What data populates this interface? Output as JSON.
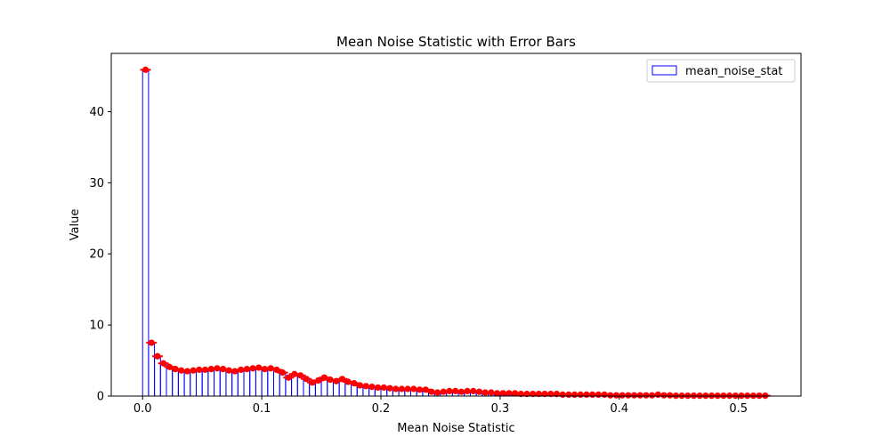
{
  "chart_data": {
    "type": "bar",
    "title": "Mean Noise Statistic with Error Bars",
    "xlabel": "Mean Noise Statistic",
    "ylabel": "Value",
    "xlim": [
      -0.0263,
      0.5525
    ],
    "ylim": [
      0,
      48.2
    ],
    "xticks": [
      0.0,
      0.1,
      0.2,
      0.3,
      0.4,
      0.5
    ],
    "xtick_labels": [
      "0.0",
      "0.1",
      "0.2",
      "0.3",
      "0.4",
      "0.5"
    ],
    "yticks": [
      0,
      10,
      20,
      30,
      40
    ],
    "ytick_labels": [
      "0",
      "10",
      "20",
      "30",
      "40"
    ],
    "legend": {
      "label": "mean_noise_stat",
      "placement": "top-right"
    },
    "colors": {
      "bar_edge": "#0000ff",
      "error_marker": "#ff0000"
    },
    "bar_width": 0.005,
    "series": [
      {
        "name": "mean_noise_stat",
        "x": [
          0.0025,
          0.0075,
          0.0125,
          0.0175,
          0.0225,
          0.0275,
          0.0325,
          0.0375,
          0.0425,
          0.0475,
          0.0525,
          0.0575,
          0.0625,
          0.0675,
          0.0725,
          0.0775,
          0.0825,
          0.0875,
          0.0925,
          0.0975,
          0.1025,
          0.1075,
          0.1125,
          0.1175,
          0.1225,
          0.1275,
          0.1325,
          0.1375,
          0.1425,
          0.1475,
          0.1525,
          0.1575,
          0.1625,
          0.1675,
          0.1725,
          0.1775,
          0.1825,
          0.1875,
          0.1925,
          0.1975,
          0.2025,
          0.2075,
          0.2125,
          0.2175,
          0.2225,
          0.2275,
          0.2325,
          0.2375,
          0.2425,
          0.2475,
          0.2525,
          0.2575,
          0.2625,
          0.2675,
          0.2725,
          0.2775,
          0.2825,
          0.2875,
          0.2925,
          0.2975,
          0.3025,
          0.3075,
          0.3125,
          0.3175,
          0.3225,
          0.3275,
          0.3325,
          0.3375,
          0.3425,
          0.3475,
          0.3525,
          0.3575,
          0.3625,
          0.3675,
          0.3725,
          0.3775,
          0.3825,
          0.3875,
          0.3925,
          0.3975,
          0.4025,
          0.4075,
          0.4125,
          0.4175,
          0.4225,
          0.4275,
          0.4325,
          0.4375,
          0.4425,
          0.4475,
          0.4525,
          0.4575,
          0.4625,
          0.4675,
          0.4725,
          0.4775,
          0.4825,
          0.4875,
          0.4925,
          0.4975,
          0.5025,
          0.5075,
          0.5125,
          0.5175,
          0.5225
        ],
        "values": [
          45.9,
          7.5,
          5.6,
          4.6,
          4.1,
          3.8,
          3.6,
          3.5,
          3.6,
          3.7,
          3.7,
          3.8,
          3.9,
          3.8,
          3.6,
          3.5,
          3.7,
          3.8,
          3.9,
          4.0,
          3.8,
          3.9,
          3.7,
          3.3,
          2.6,
          3.1,
          2.9,
          2.4,
          1.9,
          2.2,
          2.6,
          2.3,
          2.1,
          2.4,
          2.0,
          1.8,
          1.5,
          1.4,
          1.3,
          1.2,
          1.2,
          1.1,
          1.0,
          1.0,
          1.0,
          1.0,
          0.9,
          0.9,
          0.6,
          0.5,
          0.6,
          0.7,
          0.7,
          0.6,
          0.7,
          0.7,
          0.6,
          0.5,
          0.5,
          0.4,
          0.4,
          0.4,
          0.4,
          0.3,
          0.3,
          0.3,
          0.3,
          0.3,
          0.3,
          0.3,
          0.2,
          0.2,
          0.2,
          0.2,
          0.2,
          0.2,
          0.2,
          0.2,
          0.1,
          0.1,
          0.1,
          0.1,
          0.1,
          0.1,
          0.1,
          0.1,
          0.2,
          0.1,
          0.1,
          0.05,
          0.05,
          0.05,
          0.05,
          0.05,
          0.05,
          0.05,
          0.05,
          0.05,
          0.05,
          0.05,
          0.05,
          0.05,
          0.05,
          0.05,
          0.05
        ]
      }
    ]
  }
}
